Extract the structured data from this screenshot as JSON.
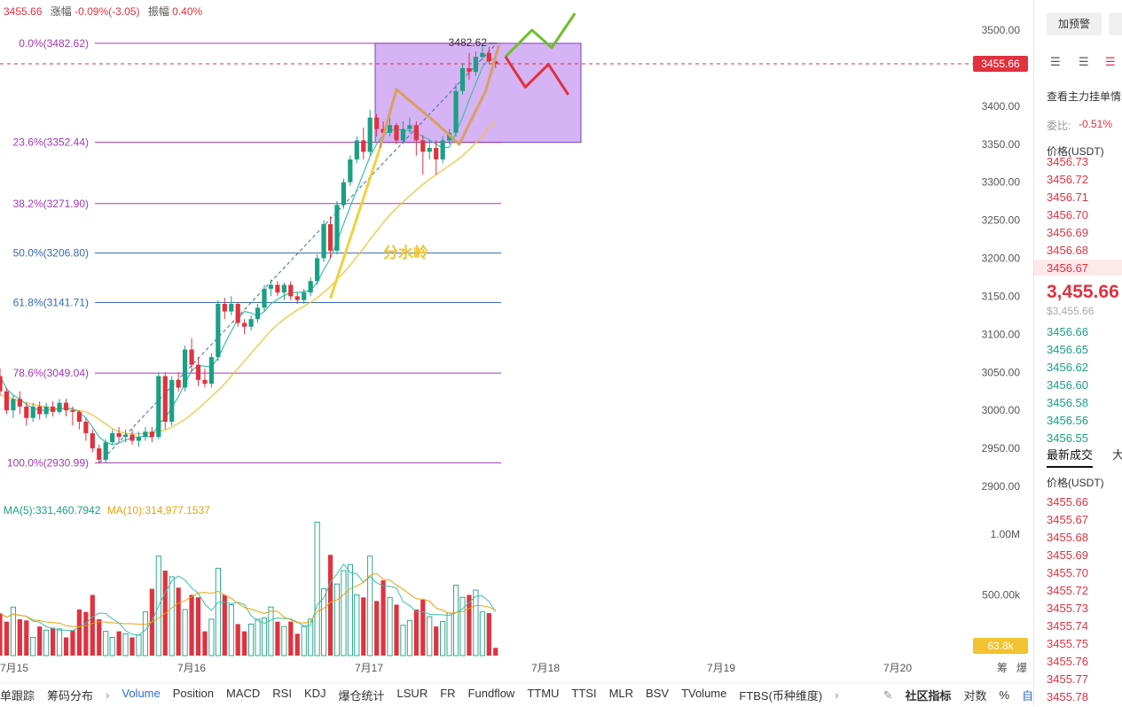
{
  "header": {
    "price": "3455.66",
    "change_label": "涨幅",
    "change_value": "-0.09%(-3.05)",
    "amplitude_label": "振幅",
    "amplitude_value": "0.40%"
  },
  "chart_data": {
    "type": "candlestick",
    "y_axis_ticks": [
      3500,
      3450,
      3400,
      3350,
      3300,
      3250,
      3200,
      3150,
      3100,
      3050,
      3000,
      2950,
      2900
    ],
    "y_axis_tick_labels": [
      "3500.00",
      "3450.00",
      "3400.00",
      "3350.00",
      "3300.00",
      "3250.00",
      "3200.00",
      "3150.00",
      "3100.00",
      "3050.00",
      "3000.00",
      "2950.00",
      "2900.00"
    ],
    "ylim": [
      2890,
      3515
    ],
    "x_axis_labels": [
      "7月15",
      "7月16",
      "7月17",
      "7月18",
      "7月19",
      "7月20"
    ],
    "current_price_tag": "3455.66",
    "high_marker": "3482.62",
    "fibonacci_levels": [
      {
        "label": "0.0%(3482.62)",
        "value": 3482.62
      },
      {
        "label": "23.6%(3352.44)",
        "value": 3352.44
      },
      {
        "label": "38.2%(3271.90)",
        "value": 3271.9
      },
      {
        "label": "50.0%(3206.80)",
        "value": 3206.8
      },
      {
        "label": "61.8%(3141.71)",
        "value": 3141.71
      },
      {
        "label": "78.6%(3049.04)",
        "value": 3049.04
      },
      {
        "label": "100.0%(2930.99)",
        "value": 2930.99
      }
    ],
    "annotation_text": "分水岭",
    "candles": [
      [
        3045,
        3025,
        3055,
        3020
      ],
      [
        3025,
        3000,
        3030,
        2995
      ],
      [
        3000,
        3015,
        3020,
        2990
      ],
      [
        3015,
        3005,
        3025,
        2995
      ],
      [
        3005,
        2990,
        3010,
        2980
      ],
      [
        2990,
        3005,
        3010,
        2985
      ],
      [
        3005,
        2995,
        3012,
        2988
      ],
      [
        2995,
        3005,
        3010,
        2990
      ],
      [
        3005,
        2998,
        3012,
        2992
      ],
      [
        2998,
        3010,
        3015,
        2995
      ],
      [
        3010,
        3000,
        3015,
        2992
      ],
      [
        3000,
        2998,
        3005,
        2980
      ],
      [
        2998,
        2985,
        3000,
        2975
      ],
      [
        2985,
        2970,
        2990,
        2960
      ],
      [
        2970,
        2950,
        2975,
        2945
      ],
      [
        2950,
        2935,
        2955,
        2930
      ],
      [
        2935,
        2958,
        2962,
        2931
      ],
      [
        2958,
        2970,
        2975,
        2955
      ],
      [
        2970,
        2965,
        2978,
        2958
      ],
      [
        2965,
        2968,
        2975,
        2958
      ],
      [
        2968,
        2960,
        2975,
        2955
      ],
      [
        2960,
        2965,
        2972,
        2952
      ],
      [
        2965,
        2972,
        2978,
        2960
      ],
      [
        2972,
        2965,
        2978,
        2958
      ],
      [
        2965,
        3045,
        3050,
        2962
      ],
      [
        3045,
        2985,
        3050,
        2975
      ],
      [
        2985,
        3040,
        3045,
        2980
      ],
      [
        3040,
        3030,
        3050,
        3025
      ],
      [
        3030,
        3080,
        3085,
        3025
      ],
      [
        3080,
        3060,
        3095,
        3050
      ],
      [
        3060,
        3040,
        3070,
        3032
      ],
      [
        3040,
        3035,
        3055,
        3030
      ],
      [
        3035,
        3070,
        3075,
        3030
      ],
      [
        3070,
        3140,
        3145,
        3065
      ],
      [
        3140,
        3130,
        3148,
        3120
      ],
      [
        3130,
        3140,
        3150,
        3125
      ],
      [
        3140,
        3115,
        3142,
        3110
      ],
      [
        3115,
        3110,
        3120,
        3100
      ],
      [
        3110,
        3120,
        3125,
        3105
      ],
      [
        3120,
        3135,
        3140,
        3115
      ],
      [
        3135,
        3160,
        3165,
        3130
      ],
      [
        3160,
        3165,
        3172,
        3150
      ],
      [
        3165,
        3155,
        3170,
        3150
      ],
      [
        3155,
        3165,
        3168,
        3145
      ],
      [
        3165,
        3150,
        3170,
        3145
      ],
      [
        3150,
        3145,
        3155,
        3140
      ],
      [
        3145,
        3155,
        3160,
        3140
      ],
      [
        3155,
        3170,
        3175,
        3150
      ],
      [
        3170,
        3200,
        3205,
        3165
      ],
      [
        3200,
        3245,
        3250,
        3195
      ],
      [
        3245,
        3210,
        3255,
        3200
      ],
      [
        3210,
        3270,
        3275,
        3205
      ],
      [
        3270,
        3300,
        3305,
        3265
      ],
      [
        3300,
        3330,
        3335,
        3295
      ],
      [
        3330,
        3355,
        3360,
        3325
      ],
      [
        3355,
        3340,
        3372,
        3330
      ],
      [
        3340,
        3385,
        3395,
        3335
      ],
      [
        3385,
        3370,
        3390,
        3360
      ],
      [
        3370,
        3365,
        3380,
        3355
      ],
      [
        3365,
        3375,
        3385,
        3360
      ],
      [
        3375,
        3355,
        3378,
        3350
      ],
      [
        3355,
        3370,
        3380,
        3350
      ],
      [
        3370,
        3375,
        3385,
        3365
      ],
      [
        3375,
        3355,
        3380,
        3335
      ],
      [
        3355,
        3340,
        3362,
        3310
      ],
      [
        3340,
        3345,
        3355,
        3330
      ],
      [
        3345,
        3330,
        3355,
        3310
      ],
      [
        3330,
        3355,
        3360,
        3325
      ],
      [
        3355,
        3365,
        3370,
        3350
      ],
      [
        3365,
        3420,
        3430,
        3360
      ],
      [
        3420,
        3450,
        3455,
        3415
      ],
      [
        3450,
        3445,
        3470,
        3435
      ],
      [
        3445,
        3465,
        3472,
        3440
      ],
      [
        3465,
        3470,
        3482,
        3460
      ],
      [
        3470,
        3459,
        3478,
        3455
      ],
      [
        3459,
        3455.66,
        3463,
        3450
      ]
    ],
    "ma_fast": [
      3045,
      3028,
      3020,
      3015,
      3008,
      3003,
      3000,
      3000,
      3001,
      3002,
      3003,
      3002,
      2998,
      2990,
      2978,
      2965,
      2958,
      2955,
      2957,
      2961,
      2964,
      2965,
      2966,
      2965,
      2983,
      2989,
      3004,
      3018,
      3036,
      3052,
      3059,
      3058,
      3057,
      3069,
      3087,
      3104,
      3120,
      3130,
      3128,
      3124,
      3130,
      3140,
      3146,
      3151,
      3155,
      3155,
      3156,
      3158,
      3168,
      3185,
      3200,
      3222,
      3245,
      3268,
      3290,
      3312,
      3334,
      3350,
      3362,
      3368,
      3370,
      3368,
      3368,
      3365,
      3360,
      3356,
      3350,
      3345,
      3346,
      3365,
      3385,
      3408,
      3430,
      3451,
      3462,
      3462
    ],
    "ma_slow": [
      3020,
      3018,
      3015,
      3012,
      3010,
      3008,
      3006,
      3004,
      3003,
      3002,
      3002,
      3001,
      3000,
      2998,
      2994,
      2988,
      2982,
      2976,
      2972,
      2970,
      2969,
      2969,
      2970,
      2970,
      2972,
      2974,
      2978,
      2983,
      2988,
      2995,
      3002,
      3010,
      3018,
      3026,
      3035,
      3045,
      3055,
      3065,
      3075,
      3085,
      3095,
      3105,
      3113,
      3120,
      3126,
      3132,
      3137,
      3142,
      3148,
      3155,
      3163,
      3172,
      3181,
      3191,
      3202,
      3213,
      3225,
      3236,
      3247,
      3257,
      3266,
      3274,
      3282,
      3290,
      3297,
      3304,
      3310,
      3316,
      3322,
      3328,
      3335,
      3343,
      3352,
      3361,
      3371,
      3380
    ],
    "volume_axis_labels": [
      "1.00M",
      "500.00k"
    ],
    "volume_current_tag": "63.8k",
    "volume_ma5_label": "MA(5):331,460.7942",
    "volume_ma10_label": "MA(10):314,977.1537",
    "volume": [
      [
        0.05,
        350000
      ],
      [
        0.95,
        280000
      ],
      [
        0.5,
        400000
      ],
      [
        0.5,
        300000
      ],
      [
        0.7,
        290000
      ],
      [
        0.3,
        150000
      ],
      [
        0.5,
        240000
      ],
      [
        0.5,
        210000
      ],
      [
        0.5,
        230000
      ],
      [
        0.3,
        220000
      ],
      [
        0.6,
        150000
      ],
      [
        0.7,
        210000
      ],
      [
        0.8,
        380000
      ],
      [
        0.9,
        360000
      ],
      [
        0.9,
        500000
      ],
      [
        0.9,
        300000
      ],
      [
        0.1,
        200000
      ],
      [
        0.1,
        150000
      ],
      [
        0.7,
        200000
      ],
      [
        0.5,
        180000
      ],
      [
        0.6,
        150000
      ],
      [
        0.5,
        170000
      ],
      [
        0.2,
        360000
      ],
      [
        0.5,
        550000
      ],
      [
        0.05,
        820000
      ],
      [
        0.9,
        700000
      ],
      [
        0.2,
        650000
      ],
      [
        0.7,
        560000
      ],
      [
        0.2,
        380000
      ],
      [
        0.7,
        500000
      ],
      [
        0.8,
        480000
      ],
      [
        0.3,
        200000
      ],
      [
        0.2,
        300000
      ],
      [
        0.2,
        720000
      ],
      [
        0.7,
        500000
      ],
      [
        0.6,
        420000
      ],
      [
        0.9,
        260000
      ],
      [
        0.9,
        200000
      ],
      [
        0.5,
        260000
      ],
      [
        0.2,
        300000
      ],
      [
        0.2,
        310000
      ],
      [
        0.3,
        400000
      ],
      [
        0.6,
        280000
      ],
      [
        0.5,
        240000
      ],
      [
        0.7,
        280000
      ],
      [
        0.8,
        180000
      ],
      [
        0.5,
        240000
      ],
      [
        0.2,
        300000
      ],
      [
        0.05,
        1100000
      ],
      [
        0.2,
        550000
      ],
      [
        0.8,
        830000
      ],
      [
        0.2,
        590000
      ],
      [
        0.1,
        700000
      ],
      [
        0.2,
        750000
      ],
      [
        0.1,
        500000
      ],
      [
        0.7,
        480000
      ],
      [
        0.1,
        820000
      ],
      [
        0.6,
        450000
      ],
      [
        0.8,
        620000
      ],
      [
        0.5,
        480000
      ],
      [
        0.6,
        420000
      ],
      [
        0.5,
        250000
      ],
      [
        0.3,
        290000
      ],
      [
        0.5,
        380000
      ],
      [
        0.9,
        460000
      ],
      [
        0.3,
        320000
      ],
      [
        0.5,
        240000
      ],
      [
        0.2,
        280000
      ],
      [
        0.3,
        350000
      ],
      [
        0.05,
        580000
      ],
      [
        0.4,
        480000
      ],
      [
        0.7,
        500000
      ],
      [
        0.3,
        540000
      ],
      [
        0.3,
        360000
      ],
      [
        0.6,
        350000
      ],
      [
        0.9,
        63800
      ]
    ]
  },
  "toolbar_left": [
    "单跟踪",
    "筹码分布"
  ],
  "indicators": [
    "Volume",
    "Position",
    "MACD",
    "RSI",
    "KDJ",
    "爆仓统计",
    "LSUR",
    "FR",
    "Fundflow",
    "TTMU",
    "TTSI",
    "MLR",
    "BSV",
    "TVolume",
    "FTBS(币种维度)"
  ],
  "toolbar_right": {
    "community": "社区指标",
    "log": "对数",
    "percent": "%",
    "auto": "自动"
  },
  "axis_corner": {
    "chips": "筹",
    "liq": "爆"
  },
  "sidebar": {
    "alert_button": "加预警",
    "depth_title": "查看主力挂单情况",
    "ratio_label": "委比:",
    "ratio_value": "-0.51%",
    "price_header": "价格(USDT)",
    "asks": [
      "3456.73",
      "3456.72",
      "3456.71",
      "3456.70",
      "3456.69",
      "3456.68",
      "3456.67"
    ],
    "last_price": "3,455.66",
    "last_price_usd": "$3,455.66",
    "bids": [
      "3456.66",
      "3456.65",
      "3456.62",
      "3456.60",
      "3456.58",
      "3456.56",
      "3456.55"
    ],
    "trades_tab": "最新成交",
    "trades_tab2": "大",
    "trades_header": "价格(USDT)",
    "trades": [
      "3455.66",
      "3455.67",
      "3455.68",
      "3455.69",
      "3455.70",
      "3455.72",
      "3455.73",
      "3455.74",
      "3455.75",
      "3455.76",
      "3455.77",
      "3455.78"
    ]
  },
  "colors": {
    "up": "#1aa085",
    "down": "#e0323f",
    "fib": "#a03ab0",
    "fib_mid": "#3a6ab0",
    "ma_fast": "#3cc0a8",
    "ma_slow": "#f2c230",
    "box": "#c89af0"
  }
}
